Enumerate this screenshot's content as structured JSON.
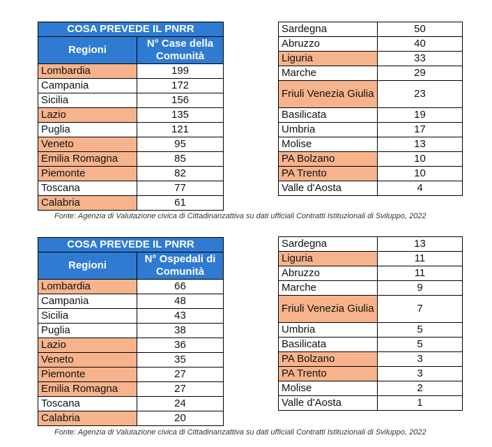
{
  "section1": {
    "title": "COSA PREVEDE IL PNRR",
    "col_region": "Regioni",
    "col_value": "N° Case della Comunità",
    "left_rows": [
      {
        "region": "Lombardia",
        "value": "199",
        "highlight": true
      },
      {
        "region": "Campania",
        "value": "172",
        "highlight": false
      },
      {
        "region": "Sicilia",
        "value": "156",
        "highlight": false
      },
      {
        "region": "Lazio",
        "value": "135",
        "highlight": true
      },
      {
        "region": "Puglia",
        "value": "121",
        "highlight": false
      },
      {
        "region": "Veneto",
        "value": "95",
        "highlight": true
      },
      {
        "region": "Emilia Romagna",
        "value": "85",
        "highlight": true
      },
      {
        "region": "Piemonte",
        "value": "82",
        "highlight": true
      },
      {
        "region": "Toscana",
        "value": "77",
        "highlight": false
      },
      {
        "region": "Calabria",
        "value": "61",
        "highlight": true
      }
    ],
    "right_rows": [
      {
        "region": "Sardegna",
        "value": "50",
        "highlight": false
      },
      {
        "region": "Abruzzo",
        "value": "40",
        "highlight": false
      },
      {
        "region": "Liguria",
        "value": "33",
        "highlight": true
      },
      {
        "region": "Marche",
        "value": "29",
        "highlight": false
      },
      {
        "region": "Friuli Venezia Giulia",
        "value": "23",
        "highlight": true
      },
      {
        "region": "Basilicata",
        "value": "19",
        "highlight": false
      },
      {
        "region": "Umbria",
        "value": "17",
        "highlight": false
      },
      {
        "region": "Molise",
        "value": "13",
        "highlight": false
      },
      {
        "region": "PA Bolzano",
        "value": "10",
        "highlight": true
      },
      {
        "region": "PA Trento",
        "value": "10",
        "highlight": true
      },
      {
        "region": "Valle d'Aosta",
        "value": "4",
        "highlight": false
      }
    ],
    "source": "Fonte: Agenzia di Valutazione civica di Cittadinanzattiva su dati ufficiali Contratti Istituzionali di Sviluppo, 2022"
  },
  "section2": {
    "title": "COSA PREVEDE IL PNRR",
    "col_region": "Regioni",
    "col_value": "N° Ospedali di Comunità",
    "left_rows": [
      {
        "region": "Lombardia",
        "value": "66",
        "highlight": true
      },
      {
        "region": "Campania",
        "value": "48",
        "highlight": false
      },
      {
        "region": "Sicilia",
        "value": "43",
        "highlight": false
      },
      {
        "region": "Puglia",
        "value": "38",
        "highlight": false
      },
      {
        "region": "Lazio",
        "value": "36",
        "highlight": true
      },
      {
        "region": "Veneto",
        "value": "35",
        "highlight": true
      },
      {
        "region": "Piemonte",
        "value": "27",
        "highlight": true
      },
      {
        "region": "Emilia Romagna",
        "value": "27",
        "highlight": true
      },
      {
        "region": "Toscana",
        "value": "24",
        "highlight": false
      },
      {
        "region": "Calabria",
        "value": "20",
        "highlight": true
      }
    ],
    "right_rows": [
      {
        "region": "Sardegna",
        "value": "13",
        "highlight": false
      },
      {
        "region": "Liguria",
        "value": "11",
        "highlight": true
      },
      {
        "region": "Abruzzo",
        "value": "11",
        "highlight": false
      },
      {
        "region": "Marche",
        "value": "9",
        "highlight": false
      },
      {
        "region": "Friuli Venezia Giulia",
        "value": "7",
        "highlight": true
      },
      {
        "region": "Umbria",
        "value": "5",
        "highlight": false
      },
      {
        "region": "Basilicata",
        "value": "5",
        "highlight": false
      },
      {
        "region": "PA Bolzano",
        "value": "3",
        "highlight": true
      },
      {
        "region": "PA Trento",
        "value": "3",
        "highlight": true
      },
      {
        "region": "Molise",
        "value": "2",
        "highlight": false
      },
      {
        "region": "Valle d'Aosta",
        "value": "1",
        "highlight": false
      }
    ],
    "source": "Fonte: Agenzia di Valutazione civica di Cittadinanzattiva su dati ufficiali Contratti Istituzionali di Sviluppo, 2022"
  },
  "colors": {
    "header_bg": "#2e7bd1",
    "highlight_bg": "#f6b38c"
  }
}
